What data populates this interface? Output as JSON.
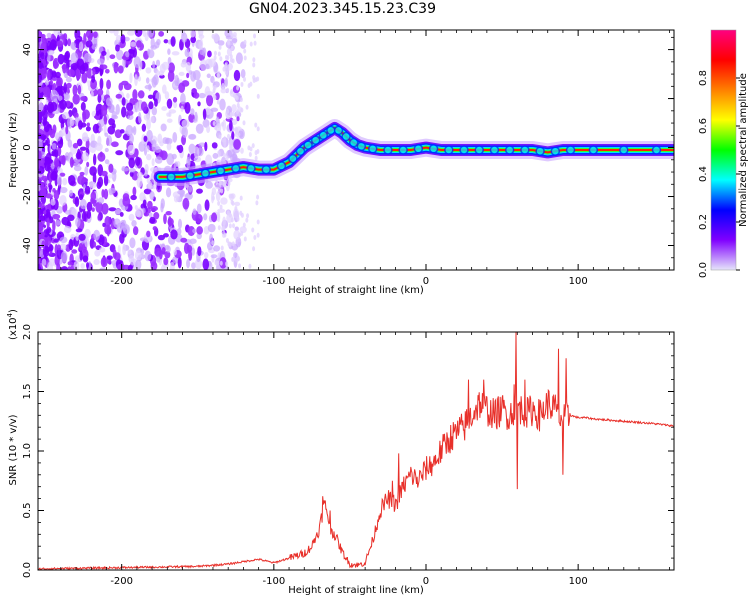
{
  "title": "GN04.2023.345.15.23.C39",
  "chart_data": [
    {
      "type": "heatmap",
      "xlabel": "Height of straight line (km)",
      "ylabel": "Frequency (Hz)",
      "xlim": [
        -255,
        163
      ],
      "ylim": [
        -50,
        48
      ],
      "xticks": [
        -200,
        -100,
        0,
        100
      ],
      "yticks": [
        -40,
        -20,
        0,
        20,
        40
      ],
      "colorbar": {
        "label": "Normalized spectral amplitude",
        "range": [
          0.0,
          1.0
        ],
        "ticks": [
          "0.0",
          "0.2",
          "0.4",
          "0.6",
          "0.8"
        ],
        "tick_values": [
          0.0,
          0.2,
          0.4,
          0.6,
          0.8
        ],
        "colors": [
          "#e6e6fa",
          "#8000ff",
          "#0000ff",
          "#00ffff",
          "#00ff00",
          "#ffff00",
          "#ff8000",
          "#ff0000",
          "#ff0080"
        ]
      },
      "ridge": {
        "x": [
          -175,
          -160,
          -150,
          -140,
          -130,
          -120,
          -110,
          -100,
          -90,
          -85,
          -80,
          -75,
          -70,
          -65,
          -60,
          -55,
          -50,
          -45,
          -40,
          -30,
          -20,
          -10,
          0,
          10,
          20,
          30,
          40,
          50,
          60,
          70,
          80,
          90,
          100,
          120,
          140,
          163
        ],
        "y": [
          -12,
          -12,
          -11,
          -10,
          -9,
          -8,
          -9,
          -9,
          -6,
          -3,
          0,
          2,
          4,
          6,
          8,
          6,
          3,
          1,
          0,
          -1,
          -1,
          -1,
          0,
          -1,
          -1,
          -1,
          -1,
          -1,
          -1,
          -1,
          -2,
          -1,
          -1,
          -1,
          -1,
          -1
        ]
      }
    },
    {
      "type": "line",
      "xlabel": "Height of straight line (km)",
      "ylabel": "SNR (10 * v/v)",
      "yscale_label": "(x10",
      "yscale_exp": "4",
      "yscale_close": ")",
      "xlim": [
        -255,
        163
      ],
      "ylim": [
        0.0,
        2.0
      ],
      "xticks": [
        -200,
        -100,
        0,
        100
      ],
      "yticks": [
        0.0,
        0.5,
        1.0,
        1.5,
        2.0
      ],
      "ytick_labels": [
        "0.0",
        "0.5",
        "1.0",
        "1.5",
        "2.0"
      ],
      "series": [
        {
          "color": "#e8302a",
          "x": [
            -255,
            -200,
            -150,
            -130,
            -120,
            -110,
            -100,
            -95,
            -90,
            -85,
            -80,
            -75,
            -70,
            -67,
            -65,
            -63,
            -60,
            -55,
            -50,
            -45,
            -40,
            -35,
            -30,
            -25,
            -20,
            -15,
            -10,
            -5,
            0,
            5,
            10,
            15,
            20,
            25,
            30,
            35,
            40,
            45,
            50,
            55,
            60,
            65,
            70,
            75,
            80,
            85,
            90,
            95,
            100,
            105,
            110,
            120,
            130,
            140,
            150,
            163
          ],
          "y": [
            0.01,
            0.02,
            0.03,
            0.05,
            0.07,
            0.09,
            0.06,
            0.08,
            0.1,
            0.12,
            0.14,
            0.2,
            0.35,
            0.55,
            0.5,
            0.35,
            0.3,
            0.15,
            0.05,
            0.04,
            0.06,
            0.25,
            0.5,
            0.6,
            0.55,
            0.7,
            0.8,
            0.75,
            0.85,
            0.9,
            1.0,
            1.1,
            1.15,
            1.2,
            1.3,
            1.4,
            1.35,
            1.3,
            1.35,
            1.3,
            1.4,
            1.3,
            1.35,
            1.3,
            1.4,
            1.35,
            1.25,
            1.3,
            1.28,
            1.28,
            1.27,
            1.26,
            1.25,
            1.24,
            1.23,
            1.21
          ]
        }
      ],
      "spikes": [
        {
          "x": -68,
          "y": 0.62
        },
        {
          "x": -63,
          "y": 0.5
        },
        {
          "x": -22,
          "y": 0.75
        },
        {
          "x": -18,
          "y": 0.98
        },
        {
          "x": 28,
          "y": 1.6
        },
        {
          "x": 38,
          "y": 1.6
        },
        {
          "x": 58,
          "y": 1.56
        },
        {
          "x": 59,
          "y": 2.0
        },
        {
          "x": 60,
          "y": 0.68
        },
        {
          "x": 65,
          "y": 1.6
        },
        {
          "x": 87,
          "y": 1.86
        },
        {
          "x": 90,
          "y": 0.8
        },
        {
          "x": 92,
          "y": 1.78
        }
      ]
    }
  ]
}
